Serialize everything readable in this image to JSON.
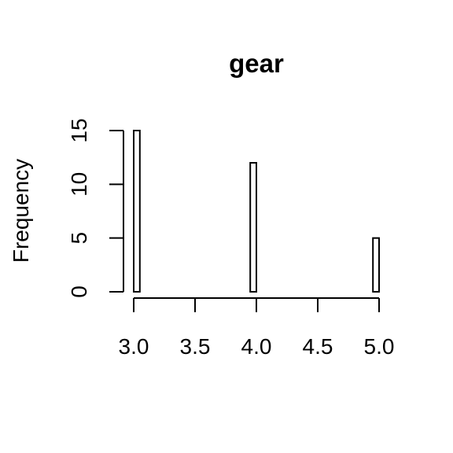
{
  "chart_data": {
    "type": "bar",
    "title": "gear",
    "xlabel": "",
    "ylabel": "Frequency",
    "xlim": [
      3.0,
      5.0
    ],
    "ylim": [
      0,
      15
    ],
    "x_ticks": [
      "3.0",
      "3.5",
      "4.0",
      "4.5",
      "5.0"
    ],
    "y_ticks": [
      "0",
      "5",
      "10",
      "15"
    ],
    "bins": [
      {
        "from": 3.0,
        "to": 3.05,
        "count": 15
      },
      {
        "from": 3.05,
        "to": 3.95,
        "count": 0
      },
      {
        "from": 3.95,
        "to": 4.0,
        "count": 12
      },
      {
        "from": 4.0,
        "to": 4.95,
        "count": 0
      },
      {
        "from": 4.95,
        "to": 5.0,
        "count": 5
      }
    ],
    "grid": false,
    "legend": "none"
  }
}
